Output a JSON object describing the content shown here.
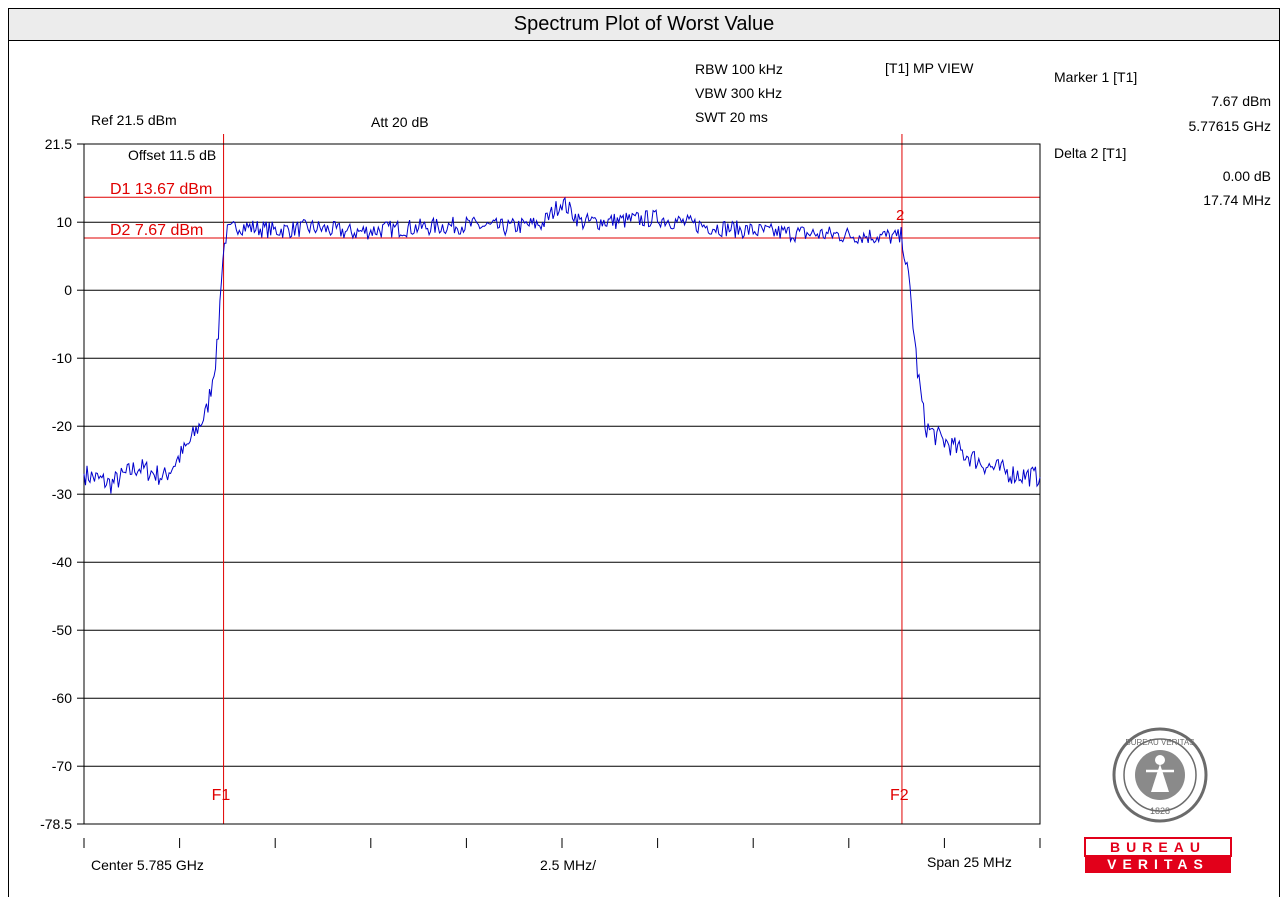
{
  "title": "Spectrum Plot of Worst Value",
  "settings": {
    "ref": "Ref 21.5 dBm",
    "att": "Att 20 dB",
    "rbw": "RBW 100 kHz",
    "vbw": "VBW 300 kHz",
    "swt": "SWT 20 ms",
    "view": "[T1] MP VIEW",
    "offset": "Offset 11.5 dB"
  },
  "marker_panel": {
    "marker1_label": "Marker 1 [T1]",
    "marker1_level": "7.67 dBm",
    "marker1_freq": "5.77615 GHz",
    "delta2_label": "Delta 2 [T1]",
    "delta2_level": "0.00 dB",
    "delta2_freq": "17.74 MHz"
  },
  "footer": {
    "center": "Center 5.785 GHz",
    "per_div": "2.5 MHz/",
    "span": "Span 25 MHz"
  },
  "logo": {
    "seal_top_text": "BUREAU VERITAS",
    "seal_year": "1828",
    "word1": "BUREAU",
    "word2": "VERITAS",
    "color": "#e2001a"
  },
  "chart_data": {
    "type": "line",
    "x_unit": "GHz",
    "y_unit": "dBm",
    "xlim": [
      5.7725,
      5.7975
    ],
    "ylim": [
      -78.5,
      21.5
    ],
    "y_ticks": [
      21.5,
      10,
      0,
      -10,
      -20,
      -30,
      -40,
      -50,
      -60,
      -70,
      -78.5
    ],
    "y_tick_labels": [
      "21.5",
      "10",
      "0",
      "-10",
      "-20",
      "-30",
      "-40",
      "-50",
      "-60",
      "-70",
      "-78.5"
    ],
    "x_divisions": 10,
    "grid": true,
    "trace_color": "#0000cc",
    "line_color": "#e00000",
    "display_lines": [
      {
        "label": "D1 13.67 dBm",
        "value": 13.67
      },
      {
        "label": "D2 7.67 dBm",
        "value": 7.67
      }
    ],
    "freq_lines": [
      {
        "label": "F1",
        "x": 5.77615
      },
      {
        "label": "F2",
        "x": 5.79389
      }
    ],
    "markers": [
      {
        "label": "2",
        "x": 5.79389,
        "y": 7.67
      }
    ],
    "series": [
      {
        "x": [
          5.7725,
          5.7732,
          5.7739,
          5.7746,
          5.7752,
          5.7757,
          5.7758,
          5.776,
          5.7761,
          5.7762,
          5.7765,
          5.7775,
          5.7785,
          5.7795,
          5.7805,
          5.7815,
          5.7825,
          5.7835,
          5.7845,
          5.785,
          5.7855,
          5.7865,
          5.7875,
          5.7885,
          5.7895,
          5.7905,
          5.7915,
          5.7925,
          5.7935,
          5.7939,
          5.7941,
          5.7943,
          5.7945,
          5.7948,
          5.7955,
          5.7962,
          5.7968,
          5.7975
        ],
        "y": [
          -27,
          -28.5,
          -26,
          -27.5,
          -23,
          -18,
          -15,
          -8,
          3,
          8,
          9.5,
          8.8,
          9.2,
          8.5,
          9,
          9.3,
          9.6,
          9.2,
          9.8,
          13,
          10,
          10.2,
          10.6,
          9.6,
          9,
          8.5,
          8.3,
          8.1,
          7.9,
          7.67,
          0,
          -12,
          -20,
          -21.5,
          -24,
          -26,
          -27,
          -27.5
        ]
      }
    ]
  }
}
